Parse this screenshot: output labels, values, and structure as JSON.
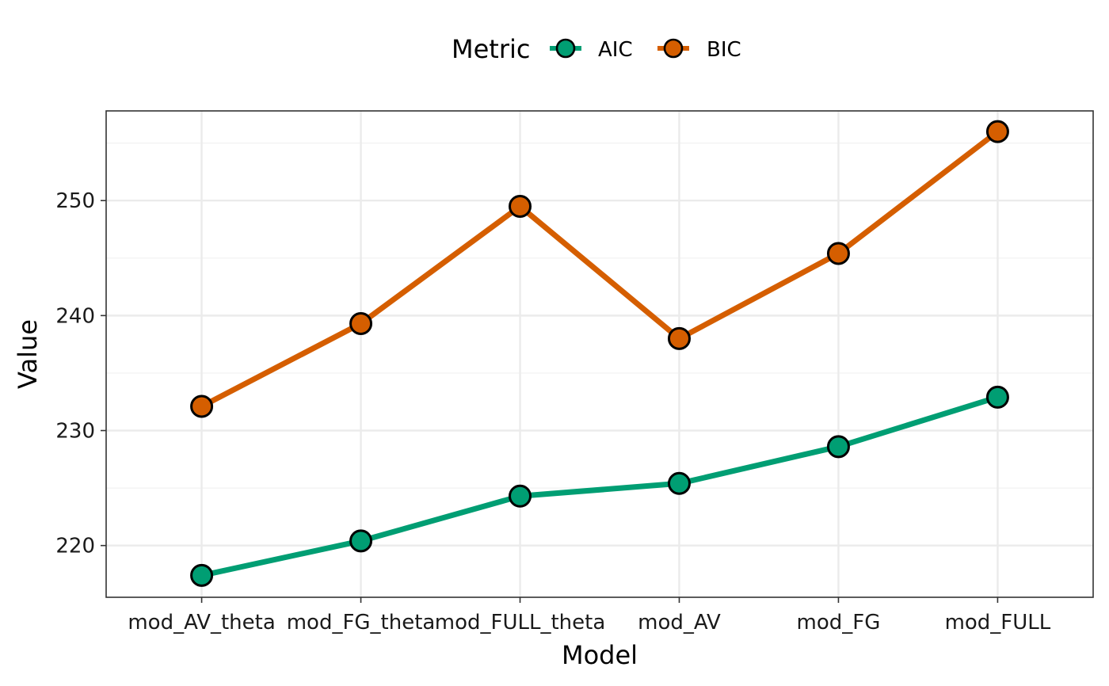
{
  "chart_data": {
    "type": "line",
    "title": "",
    "xlabel": "Model",
    "ylabel": "Value",
    "categories": [
      "mod_AV_theta",
      "mod_FG_theta",
      "mod_FULL_theta",
      "mod_AV",
      "mod_FG",
      "mod_FULL"
    ],
    "ylim": [
      215.5,
      257.8
    ],
    "yticks": [
      220,
      230,
      240,
      250
    ],
    "ytick_labels": [
      "220",
      "230",
      "240",
      "250"
    ],
    "grid": true,
    "legend": {
      "title": "Metric",
      "position": "top",
      "entries": [
        "AIC",
        "BIC"
      ]
    },
    "series": [
      {
        "name": "AIC",
        "color": "#009E73",
        "values": [
          217.4,
          220.4,
          224.3,
          225.4,
          228.6,
          232.9
        ]
      },
      {
        "name": "BIC",
        "color": "#D55E00",
        "values": [
          232.1,
          239.3,
          249.5,
          238.0,
          245.4,
          256.0
        ]
      }
    ]
  }
}
